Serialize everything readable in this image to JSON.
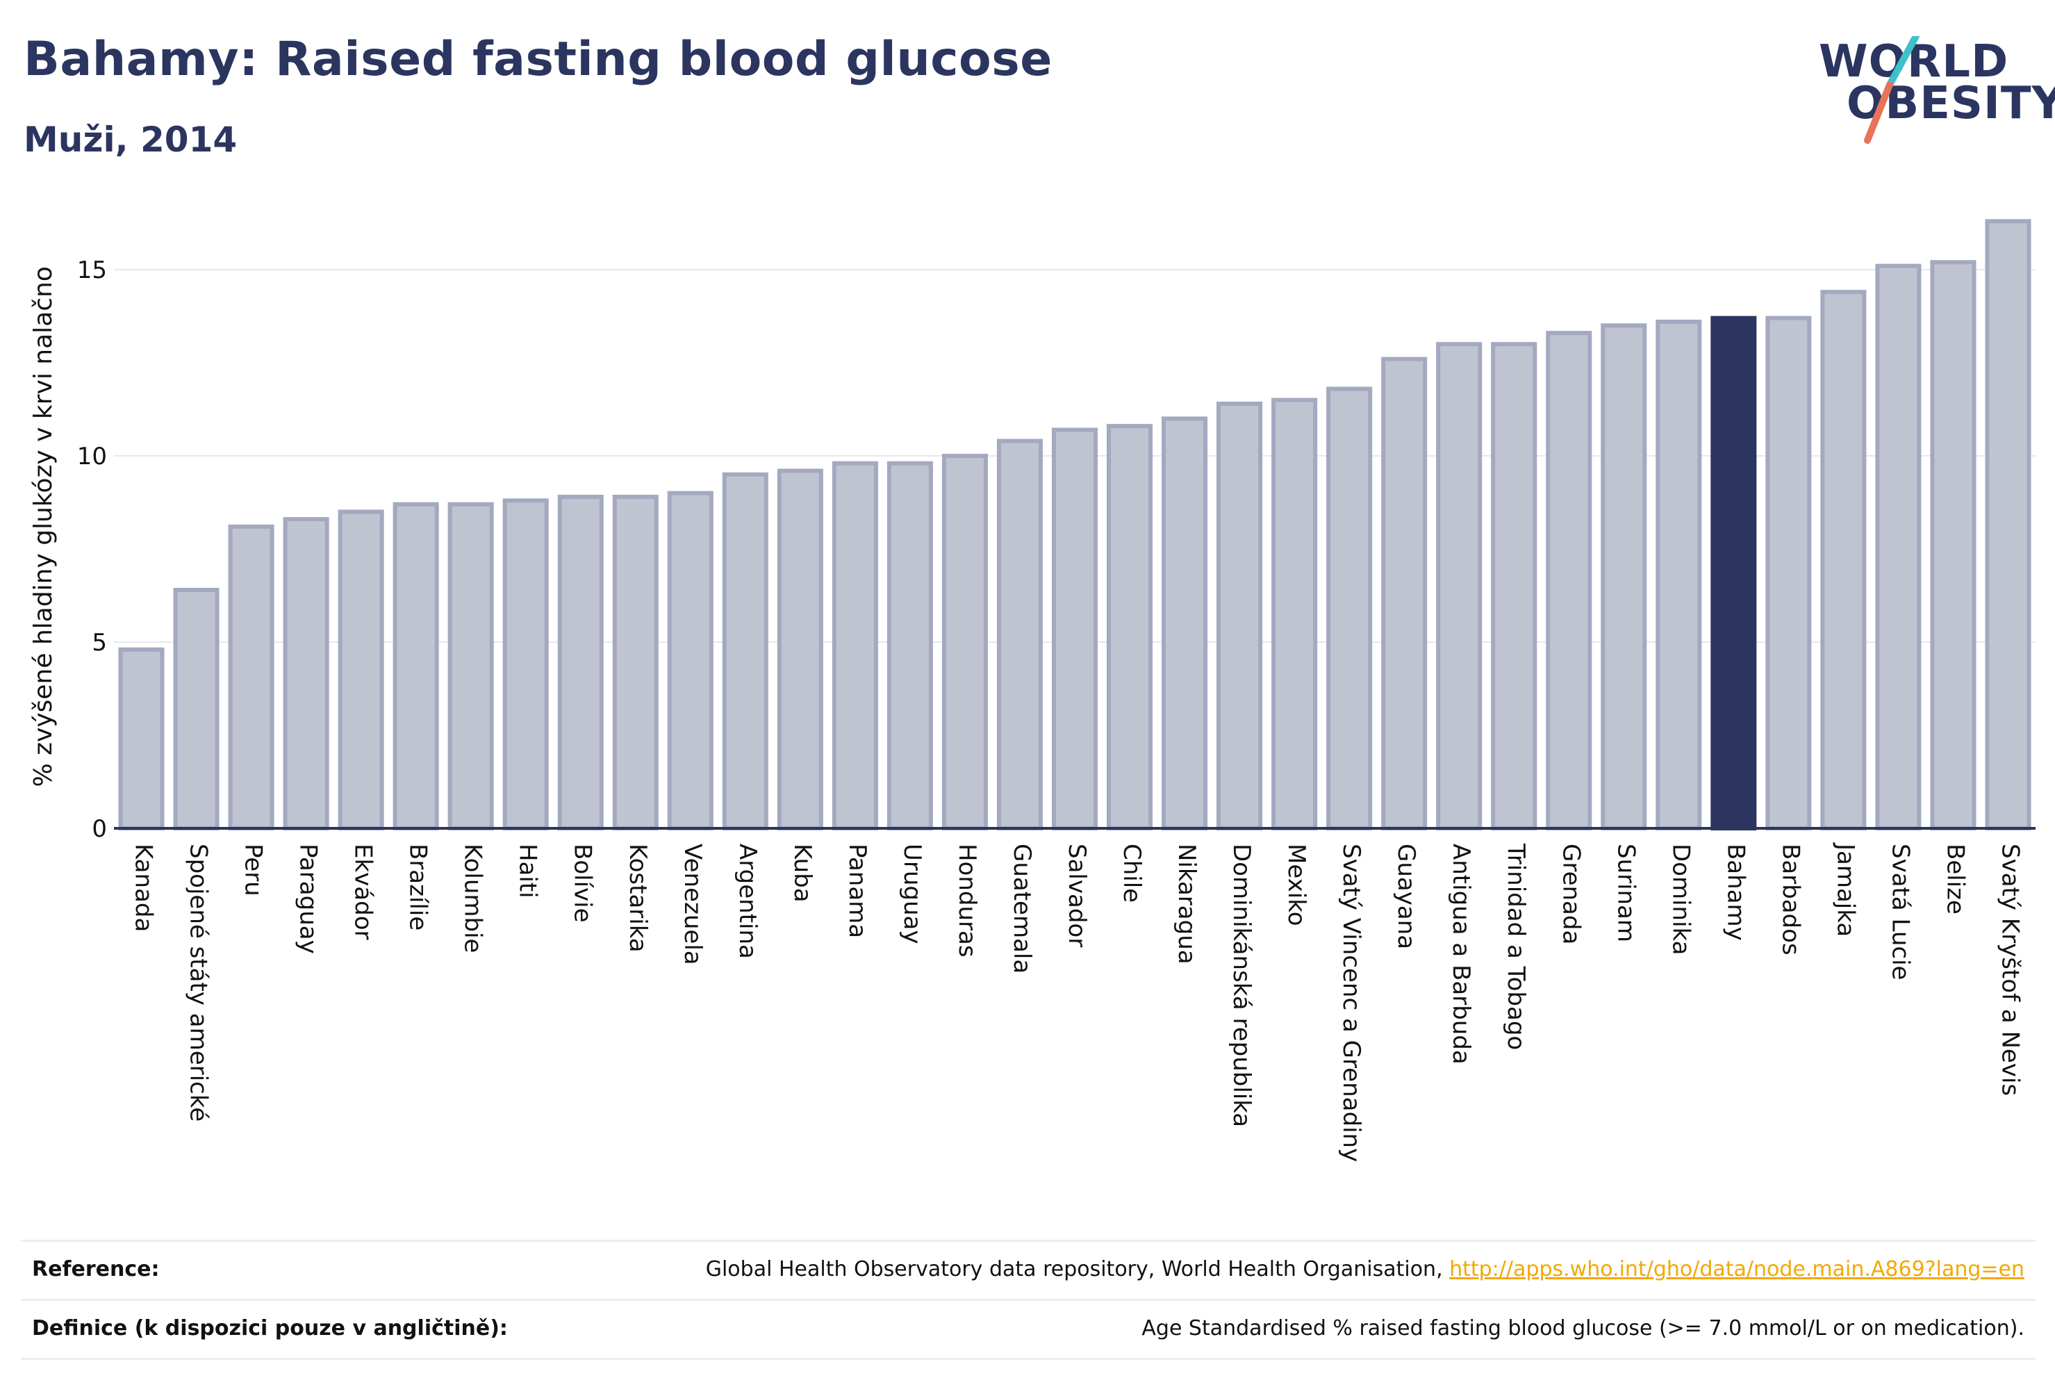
{
  "header": {
    "title": "Bahamy: Raised fasting blood glucose",
    "subtitle": "Muži, 2014"
  },
  "logo": {
    "line1": "WORLD",
    "line2": "OBESITY",
    "slash_colors": [
      "#3ec1c9",
      "#e8725a"
    ]
  },
  "colors": {
    "highlight": "#2b3560",
    "bar": "#c0c4d1",
    "bar_border": "#a3a9bf",
    "axis": "#2b3560",
    "grid": "#e6e8ef",
    "link": "#f2a900"
  },
  "chart_data": {
    "type": "bar",
    "ylabel": "% zvýšené hladiny glukózy v krvi nalačno",
    "xlabel": "",
    "ylim": [
      0,
      16.4
    ],
    "yticks": [
      0,
      5,
      10,
      15
    ],
    "highlight": "Bahamy",
    "categories": [
      "Kanada",
      "Spojené státy americké",
      "Peru",
      "Paraguay",
      "Ekvádor",
      "Brazílie",
      "Kolumbie",
      "Haiti",
      "Bolívie",
      "Kostarika",
      "Venezuela",
      "Argentina",
      "Kuba",
      "Panama",
      "Uruguay",
      "Honduras",
      "Guatemala",
      "Salvador",
      "Chile",
      "Nikaragua",
      "Dominikánská republika",
      "Mexiko",
      "Svatý Vincenc a Grenadiny",
      "Guayana",
      "Antigua a Barbuda",
      "Trinidad a Tobago",
      "Grenada",
      "Surinam",
      "Dominika",
      "Bahamy",
      "Barbados",
      "Jamajka",
      "Svatá Lucie",
      "Belize",
      "Svatý Kryštof a Nevis"
    ],
    "values": [
      4.8,
      6.4,
      8.1,
      8.3,
      8.5,
      8.7,
      8.7,
      8.8,
      8.9,
      8.9,
      9.0,
      9.5,
      9.6,
      9.8,
      9.8,
      10.0,
      10.4,
      10.7,
      10.8,
      11.0,
      11.4,
      11.5,
      11.8,
      12.6,
      13.0,
      13.0,
      13.3,
      13.5,
      13.6,
      13.7,
      13.7,
      14.4,
      15.1,
      15.2,
      16.3
    ]
  },
  "footer": {
    "reference_label": "Reference:",
    "reference_text": "Global Health Observatory data repository, World Health Organisation, ",
    "reference_link": "http://apps.who.int/gho/data/node.main.A869?lang=en",
    "definition_label": "Definice (k dispozici pouze v angličtině):",
    "definition_text": "Age Standardised % raised fasting blood glucose (>= 7.0 mmol/L or on medication)."
  }
}
